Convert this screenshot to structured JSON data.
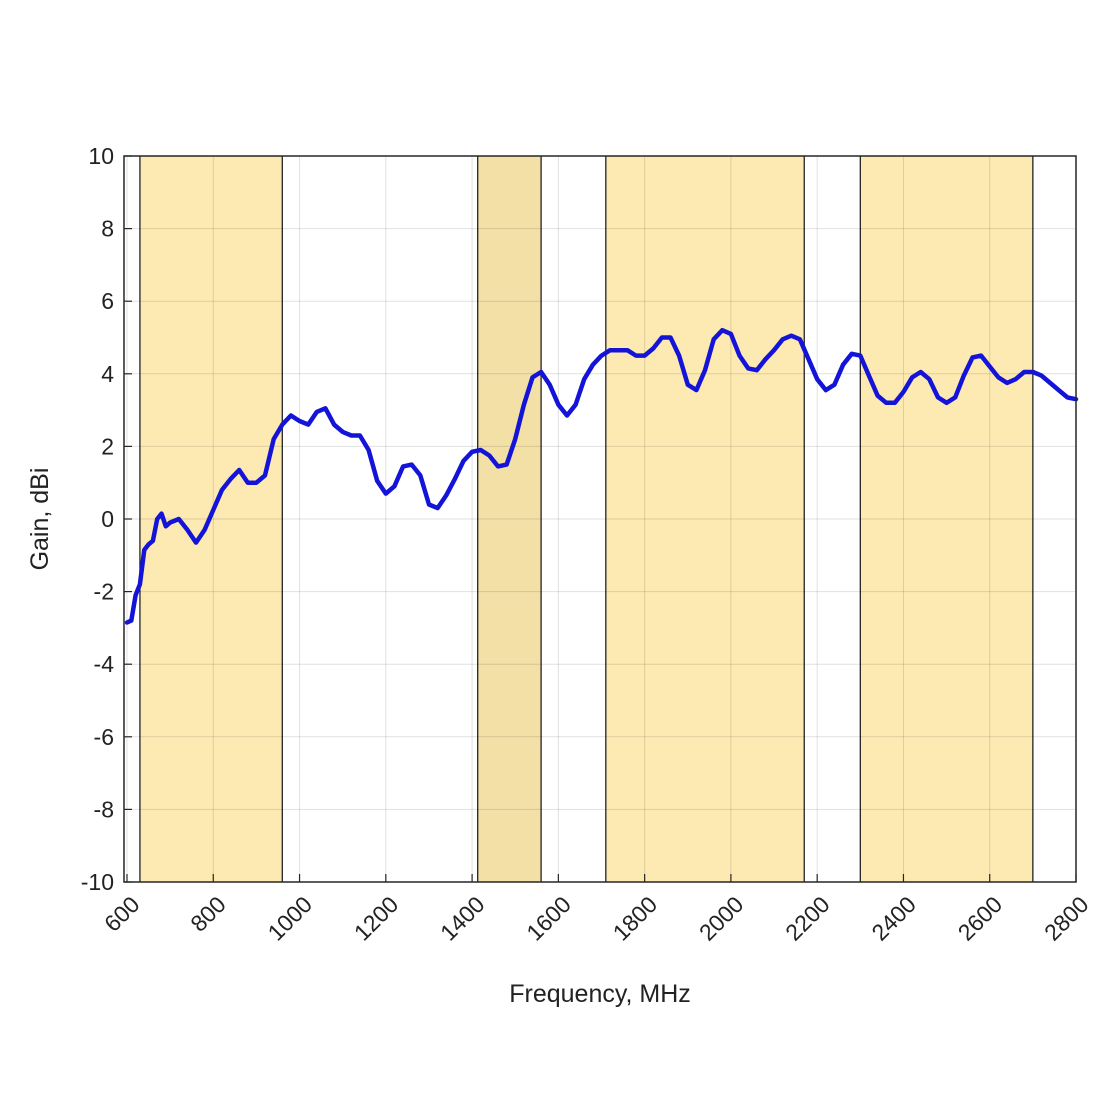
{
  "chart_data": {
    "type": "line",
    "title": "",
    "xlabel": "Frequency, MHz",
    "ylabel": "Gain, dBi",
    "xlim": [
      600,
      2800
    ],
    "ylim": [
      -10,
      10
    ],
    "xticks": [
      600,
      800,
      1000,
      1200,
      1400,
      1600,
      1800,
      2000,
      2200,
      2400,
      2600,
      2800
    ],
    "yticks": [
      -10,
      -8,
      -6,
      -4,
      -2,
      0,
      2,
      4,
      6,
      8,
      10
    ],
    "grid": true,
    "bands": [
      {
        "start": 630,
        "end": 960,
        "color": "#fde9b2"
      },
      {
        "start": 1413,
        "end": 1560,
        "color": "#f3e0a6"
      },
      {
        "start": 1710,
        "end": 2170,
        "color": "#fde9b2"
      },
      {
        "start": 2300,
        "end": 2700,
        "color": "#fde9b2"
      }
    ],
    "series": [
      {
        "name": "Gain",
        "color": "#1414d8",
        "x": [
          600,
          610,
          620,
          630,
          640,
          650,
          660,
          670,
          680,
          690,
          700,
          720,
          740,
          760,
          780,
          800,
          820,
          840,
          860,
          880,
          900,
          920,
          940,
          960,
          980,
          1000,
          1020,
          1040,
          1060,
          1080,
          1100,
          1120,
          1140,
          1160,
          1180,
          1200,
          1220,
          1240,
          1260,
          1280,
          1300,
          1320,
          1340,
          1360,
          1380,
          1400,
          1420,
          1440,
          1460,
          1480,
          1500,
          1520,
          1540,
          1560,
          1580,
          1600,
          1620,
          1640,
          1660,
          1680,
          1700,
          1720,
          1740,
          1760,
          1780,
          1800,
          1820,
          1840,
          1860,
          1880,
          1900,
          1920,
          1940,
          1960,
          1980,
          2000,
          2020,
          2040,
          2060,
          2080,
          2100,
          2120,
          2140,
          2160,
          2180,
          2200,
          2220,
          2240,
          2260,
          2280,
          2300,
          2320,
          2340,
          2360,
          2380,
          2400,
          2420,
          2440,
          2460,
          2480,
          2500,
          2520,
          2540,
          2560,
          2580,
          2600,
          2620,
          2640,
          2660,
          2680,
          2700,
          2720,
          2740,
          2760,
          2780,
          2800
        ],
        "y": [
          -2.85,
          -2.8,
          -2.1,
          -1.8,
          -0.85,
          -0.7,
          -0.6,
          0,
          0.15,
          -0.2,
          -0.1,
          0,
          -0.3,
          -0.65,
          -0.3,
          0.25,
          0.8,
          1.1,
          1.35,
          1.0,
          1.0,
          1.2,
          2.2,
          2.6,
          2.85,
          2.7,
          2.6,
          2.95,
          3.05,
          2.6,
          2.4,
          2.3,
          2.3,
          1.9,
          1.05,
          0.7,
          0.9,
          1.45,
          1.5,
          1.2,
          0.4,
          0.3,
          0.65,
          1.1,
          1.6,
          1.85,
          1.9,
          1.75,
          1.45,
          1.5,
          2.2,
          3.15,
          3.9,
          4.05,
          3.7,
          3.15,
          2.85,
          3.15,
          3.85,
          4.25,
          4.5,
          4.65,
          4.65,
          4.65,
          4.5,
          4.5,
          4.7,
          5.0,
          5.0,
          4.5,
          3.7,
          3.55,
          4.1,
          4.95,
          5.2,
          5.1,
          4.5,
          4.15,
          4.1,
          4.4,
          4.65,
          4.95,
          5.05,
          4.95,
          4.4,
          3.85,
          3.55,
          3.7,
          4.25,
          4.55,
          4.5,
          3.95,
          3.4,
          3.2,
          3.2,
          3.5,
          3.9,
          4.05,
          3.85,
          3.35,
          3.2,
          3.35,
          3.95,
          4.45,
          4.5,
          4.2,
          3.9,
          3.75,
          3.85,
          4.05,
          4.05,
          3.95,
          3.75,
          3.55,
          3.35,
          3.3
        ]
      }
    ]
  }
}
